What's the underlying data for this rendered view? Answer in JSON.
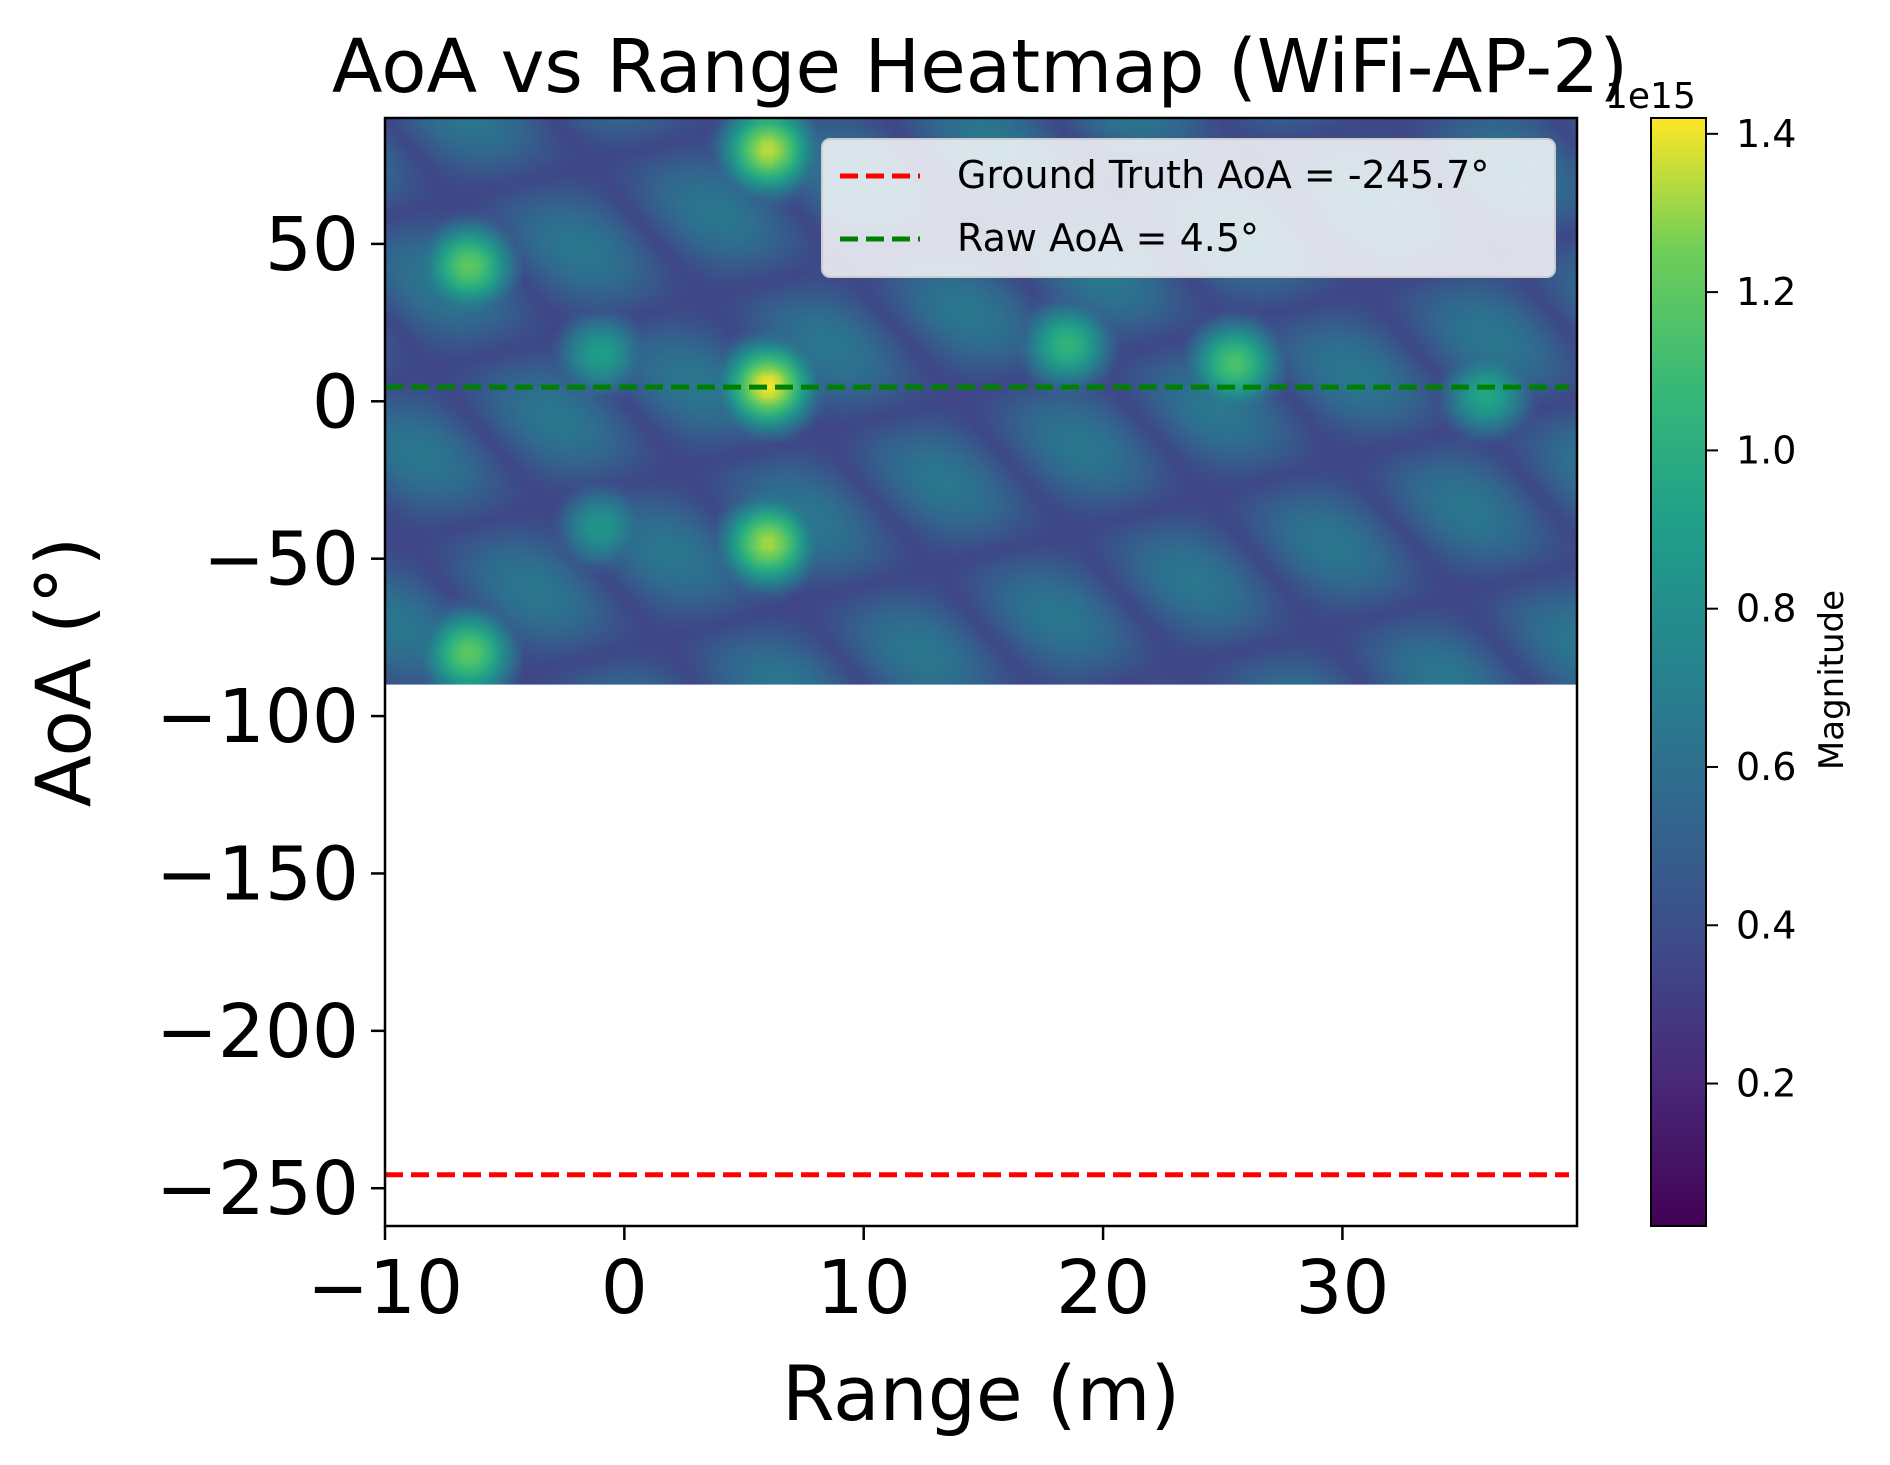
{
  "chart_data": {
    "type": "heatmap",
    "title": "AoA vs Range Heatmap (WiFi-AP-2)",
    "xlabel": "Range (m)",
    "ylabel": "AoA (°)",
    "xlim": [
      -10,
      39.8
    ],
    "ylim": [
      -262,
      90
    ],
    "x_ticks": [
      -10,
      0,
      10,
      20,
      30
    ],
    "x_tick_labels": [
      "−10",
      "0",
      "10",
      "20",
      "30"
    ],
    "y_ticks": [
      50,
      0,
      -50,
      -100,
      -150,
      -200,
      -250
    ],
    "y_tick_labels": [
      "50",
      "0",
      "−50",
      "−100",
      "−150",
      "−200",
      "−250"
    ],
    "heatmap": {
      "x_range": [
        -10,
        39.8
      ],
      "y_range": [
        -90,
        90
      ],
      "colormap": "viridis",
      "peaks": [
        {
          "x": 6,
          "y": 5,
          "magnitude": 1.42
        },
        {
          "x": 6,
          "y": 80,
          "magnitude": 1.35
        },
        {
          "x": 6,
          "y": -45,
          "magnitude": 1.32
        },
        {
          "x": -6.5,
          "y": 43,
          "magnitude": 1.2
        },
        {
          "x": -6.5,
          "y": -80,
          "magnitude": 1.2
        },
        {
          "x": 25.5,
          "y": 12,
          "magnitude": 1.15
        },
        {
          "x": 18.5,
          "y": 18,
          "magnitude": 1.05
        },
        {
          "x": 36,
          "y": 2,
          "magnitude": 0.95
        },
        {
          "x": -1,
          "y": 15,
          "magnitude": 0.9
        },
        {
          "x": -1,
          "y": -40,
          "magnitude": 0.85
        }
      ]
    },
    "lines": [
      {
        "name": "Ground Truth AoA = -245.7°",
        "y": -245.7,
        "color": "#ff0000",
        "style": "dashed"
      },
      {
        "name": "Raw AoA = 4.5°",
        "y": 4.5,
        "color": "#008000",
        "style": "dashed"
      }
    ],
    "legend": {
      "position": "top-right"
    },
    "colorbar": {
      "label": "Magnitude",
      "multiplier_label": "1e15",
      "min": 0.02,
      "max": 1.42,
      "ticks": [
        0.2,
        0.4,
        0.6,
        0.8,
        1.0,
        1.2,
        1.4
      ],
      "tick_labels": [
        "0.2",
        "0.4",
        "0.6",
        "0.8",
        "1.0",
        "1.2",
        "1.4"
      ]
    }
  }
}
